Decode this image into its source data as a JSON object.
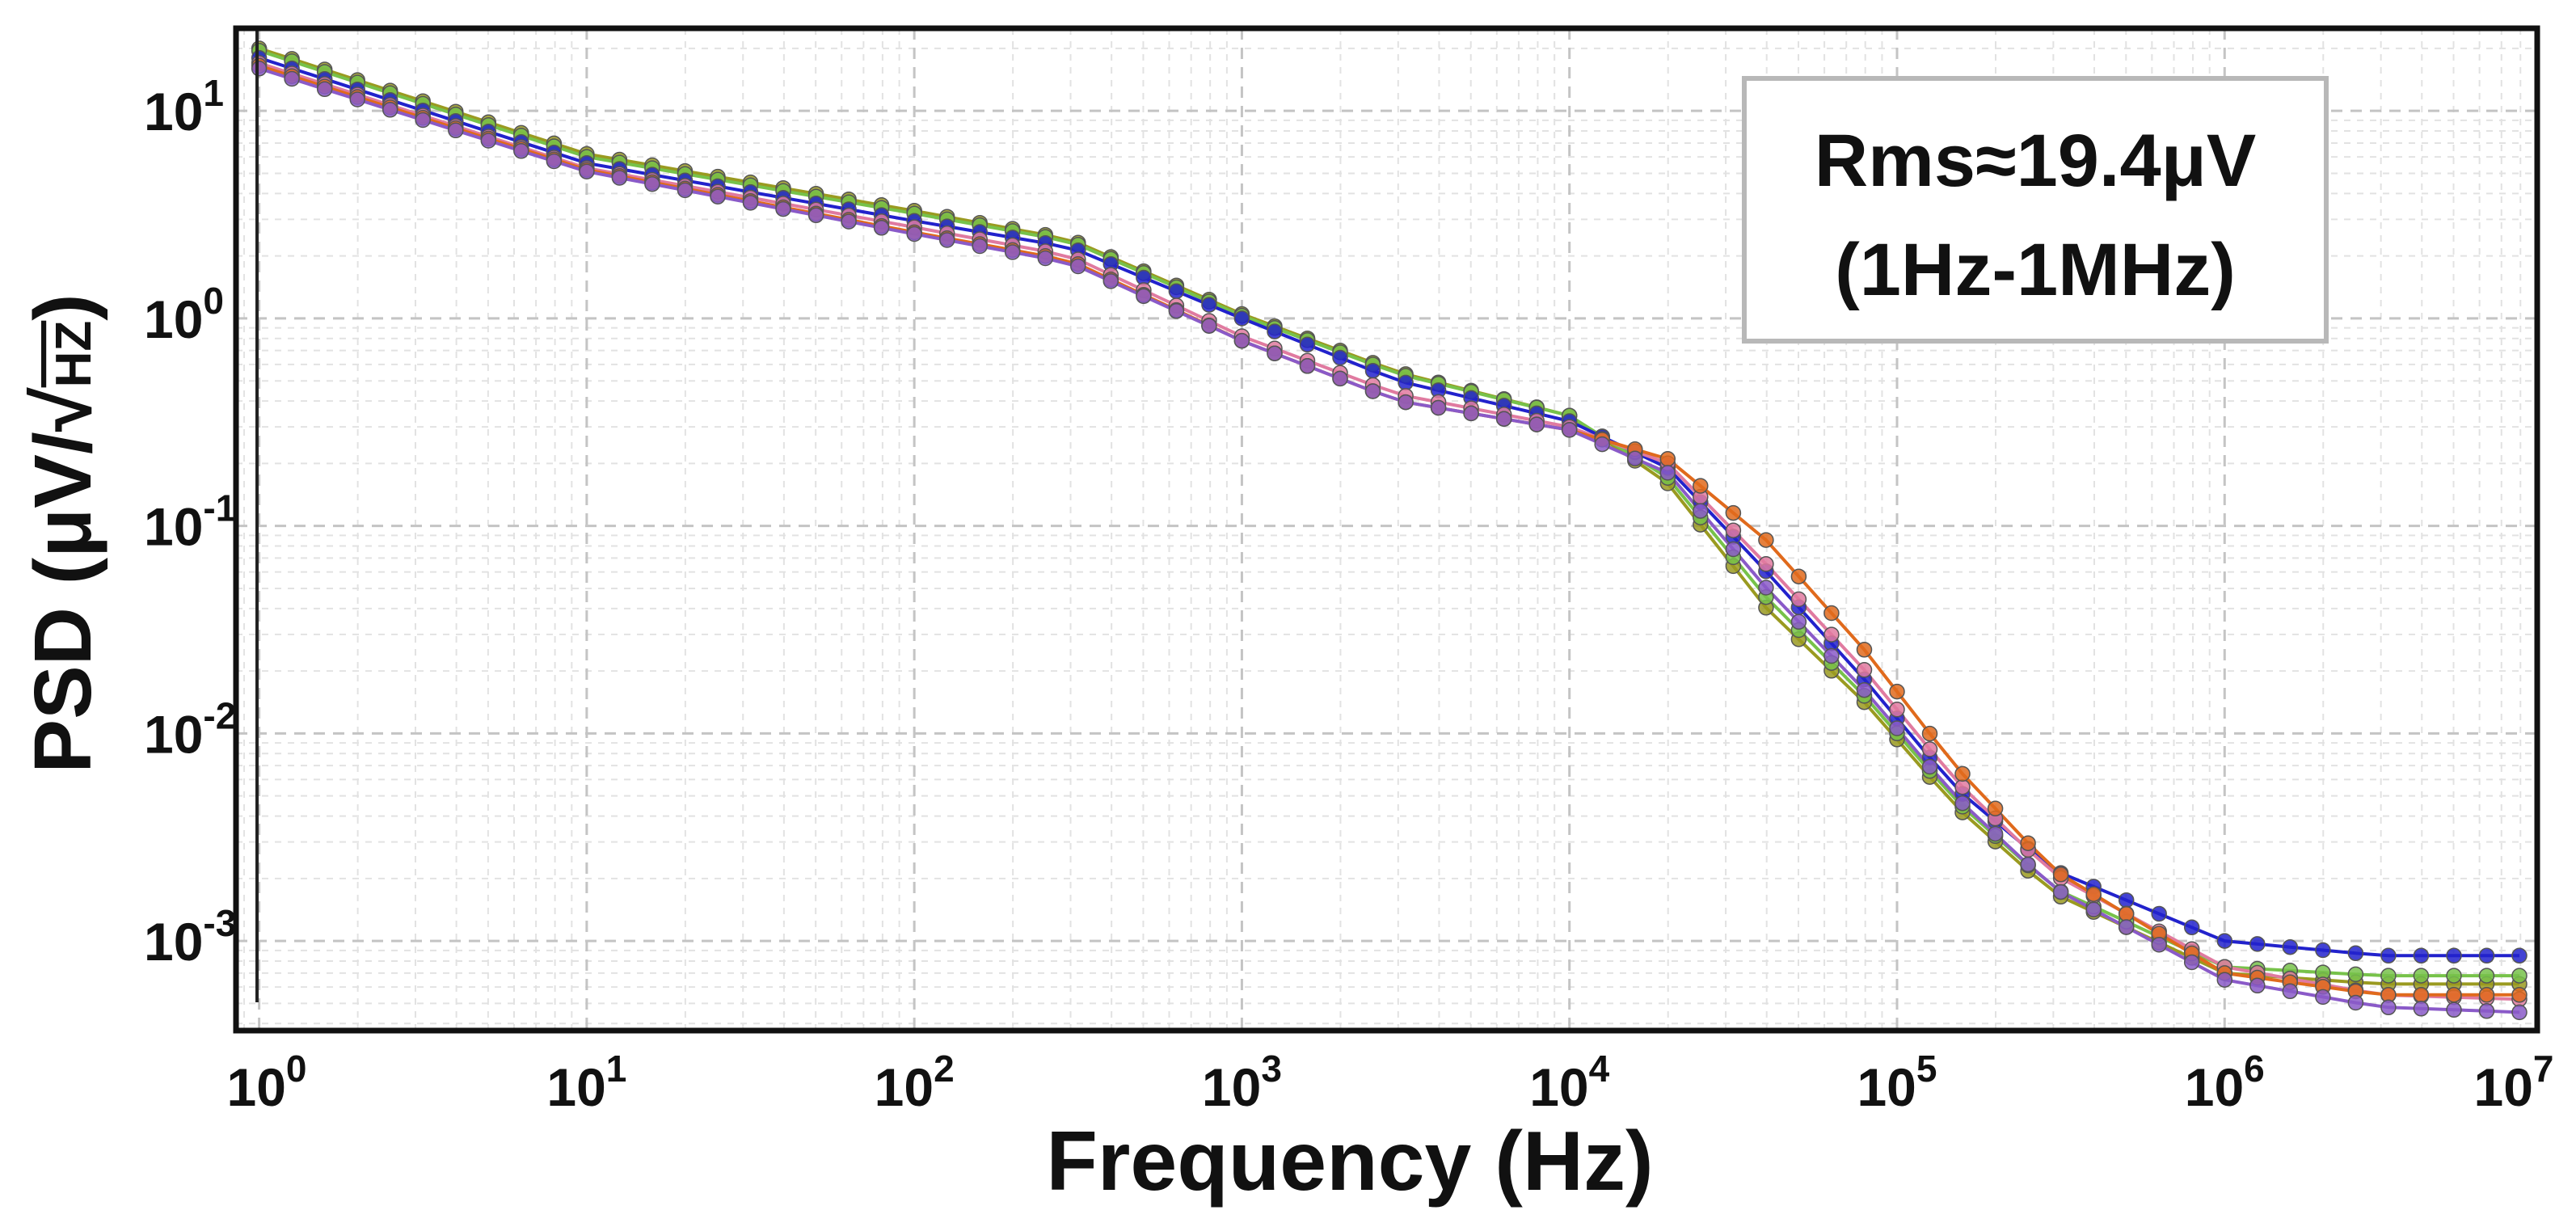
{
  "chart_data": {
    "type": "line",
    "title": "",
    "xlabel": "Frequency (Hz)",
    "ylabel": "PSD (μV/√HZ)",
    "ylabel_parts": {
      "prefix": "PSD (μV/",
      "root": "HZ",
      "suffix": ")"
    },
    "xscale": "log",
    "yscale": "log",
    "xlim": [
      0.85,
      9000000
    ],
    "ylim": [
      0.00037,
      25
    ],
    "x_ticks": [
      {
        "base": "10",
        "exp": "0",
        "value": 1
      },
      {
        "base": "10",
        "exp": "1",
        "value": 10
      },
      {
        "base": "10",
        "exp": "2",
        "value": 100
      },
      {
        "base": "10",
        "exp": "3",
        "value": 1000
      },
      {
        "base": "10",
        "exp": "4",
        "value": 10000
      },
      {
        "base": "10",
        "exp": "5",
        "value": 100000
      },
      {
        "base": "10",
        "exp": "6",
        "value": 1000000
      },
      {
        "base": "10",
        "exp": "7",
        "value": 10000000
      }
    ],
    "y_ticks": [
      {
        "base": "10",
        "exp": "1",
        "value": 10
      },
      {
        "base": "10",
        "exp": "0",
        "value": 1
      },
      {
        "base": "10",
        "exp": "-1",
        "value": 0.1
      },
      {
        "base": "10",
        "exp": "-2",
        "value": 0.01
      },
      {
        "base": "10",
        "exp": "-3",
        "value": 0.001
      }
    ],
    "grid": true,
    "annotation": {
      "line1": "Rms≈19.4μV",
      "line2": "(1Hz-1MHz)",
      "position": "top-right"
    },
    "series": [
      {
        "name": "olive",
        "color": "#9a9a20",
        "points": [
          [
            1,
            20
          ],
          [
            10,
            6.2
          ],
          [
            100,
            3.3
          ],
          [
            300,
            2.4
          ],
          [
            1000,
            1.05
          ],
          [
            3000,
            0.55
          ],
          [
            10000,
            0.34
          ],
          [
            20000,
            0.16
          ],
          [
            40000,
            0.04
          ],
          [
            80000,
            0.014
          ],
          [
            150000,
            0.0045
          ],
          [
            300000,
            0.0017
          ],
          [
            1000000,
            0.0007
          ],
          [
            3000000,
            0.00062
          ],
          [
            9000000,
            0.00062
          ]
        ]
      },
      {
        "name": "green",
        "color": "#77c24a",
        "points": [
          [
            1,
            19.5
          ],
          [
            10,
            6.0
          ],
          [
            100,
            3.2
          ],
          [
            300,
            2.35
          ],
          [
            1000,
            1.03
          ],
          [
            3000,
            0.54
          ],
          [
            10000,
            0.34
          ],
          [
            20000,
            0.17
          ],
          [
            40000,
            0.045
          ],
          [
            80000,
            0.015
          ],
          [
            150000,
            0.0048
          ],
          [
            300000,
            0.0018
          ],
          [
            1000000,
            0.00075
          ],
          [
            3000000,
            0.00068
          ],
          [
            9000000,
            0.00068
          ]
        ]
      },
      {
        "name": "blue",
        "color": "#2222cc",
        "points": [
          [
            1,
            18
          ],
          [
            10,
            5.6
          ],
          [
            100,
            2.95
          ],
          [
            300,
            2.2
          ],
          [
            1000,
            1.0
          ],
          [
            3000,
            0.5
          ],
          [
            10000,
            0.32
          ],
          [
            20000,
            0.19
          ],
          [
            40000,
            0.06
          ],
          [
            80000,
            0.018
          ],
          [
            150000,
            0.0055
          ],
          [
            300000,
            0.0022
          ],
          [
            1000000,
            0.001
          ],
          [
            3000000,
            0.00085
          ],
          [
            9000000,
            0.00085
          ]
        ]
      },
      {
        "name": "pink",
        "color": "#e07aa0",
        "points": [
          [
            1,
            17
          ],
          [
            10,
            5.3
          ],
          [
            100,
            2.75
          ],
          [
            300,
            2.0
          ],
          [
            1000,
            0.82
          ],
          [
            3000,
            0.43
          ],
          [
            10000,
            0.3
          ],
          [
            20000,
            0.2
          ],
          [
            40000,
            0.065
          ],
          [
            80000,
            0.02
          ],
          [
            150000,
            0.006
          ],
          [
            300000,
            0.0021
          ],
          [
            1000000,
            0.00075
          ],
          [
            3000000,
            0.00055
          ],
          [
            9000000,
            0.00052
          ]
        ]
      },
      {
        "name": "orange",
        "color": "#e06a1c",
        "points": [
          [
            1,
            16.5
          ],
          [
            10,
            5.2
          ],
          [
            100,
            2.6
          ],
          [
            300,
            1.9
          ],
          [
            1000,
            0.78
          ],
          [
            3000,
            0.4
          ],
          [
            10000,
            0.29
          ],
          [
            20000,
            0.21
          ],
          [
            40000,
            0.085
          ],
          [
            80000,
            0.025
          ],
          [
            150000,
            0.007
          ],
          [
            300000,
            0.0022
          ],
          [
            1000000,
            0.0007
          ],
          [
            3000000,
            0.00055
          ],
          [
            9000000,
            0.00055
          ]
        ]
      },
      {
        "name": "purple",
        "color": "#8a5ac8",
        "points": [
          [
            1,
            16
          ],
          [
            10,
            5.1
          ],
          [
            100,
            2.55
          ],
          [
            300,
            1.85
          ],
          [
            1000,
            0.78
          ],
          [
            3000,
            0.4
          ],
          [
            10000,
            0.29
          ],
          [
            20000,
            0.18
          ],
          [
            40000,
            0.05
          ],
          [
            80000,
            0.016
          ],
          [
            150000,
            0.005
          ],
          [
            300000,
            0.0018
          ],
          [
            1000000,
            0.00065
          ],
          [
            3000000,
            0.00048
          ],
          [
            9000000,
            0.00045
          ]
        ]
      }
    ]
  }
}
